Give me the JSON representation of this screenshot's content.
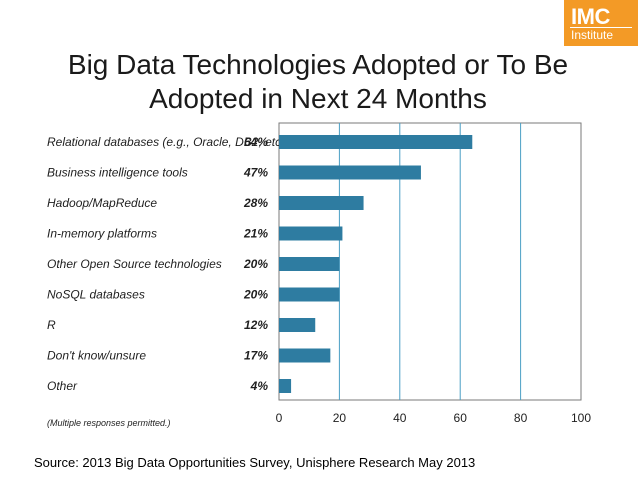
{
  "logo": {
    "main": "IMC",
    "sub": "Institute",
    "color": "#f39a26"
  },
  "slide": {
    "title_line1": "Big Data Technologies Adopted or To Be",
    "title_line2": "Adopted in Next 24 Months",
    "source": "Source:  2013 Big Data Opportunities Survey, Unisphere Research May 2013"
  },
  "chart_data": {
    "type": "bar",
    "orientation": "horizontal",
    "categories": [
      "Relational databases (e.g., Oracle, DB2, etc.)",
      "Business intelligence tools",
      "Hadoop/MapReduce",
      "In-memory platforms",
      "Other Open Source technologies",
      "NoSQL databases",
      "R",
      "Don't know/unsure",
      "Other"
    ],
    "values": [
      64,
      47,
      28,
      21,
      20,
      20,
      12,
      17,
      4
    ],
    "value_labels": [
      "64%",
      "47%",
      "28%",
      "21%",
      "20%",
      "20%",
      "12%",
      "17%",
      "4%"
    ],
    "xlim": [
      0,
      100
    ],
    "xticks": [
      0,
      20,
      40,
      60,
      80,
      100
    ],
    "grid": "vertical",
    "bar_color": "#2e7ca1",
    "grid_color": "#4a9ec4",
    "note": "(Multiple responses permitted.)"
  }
}
